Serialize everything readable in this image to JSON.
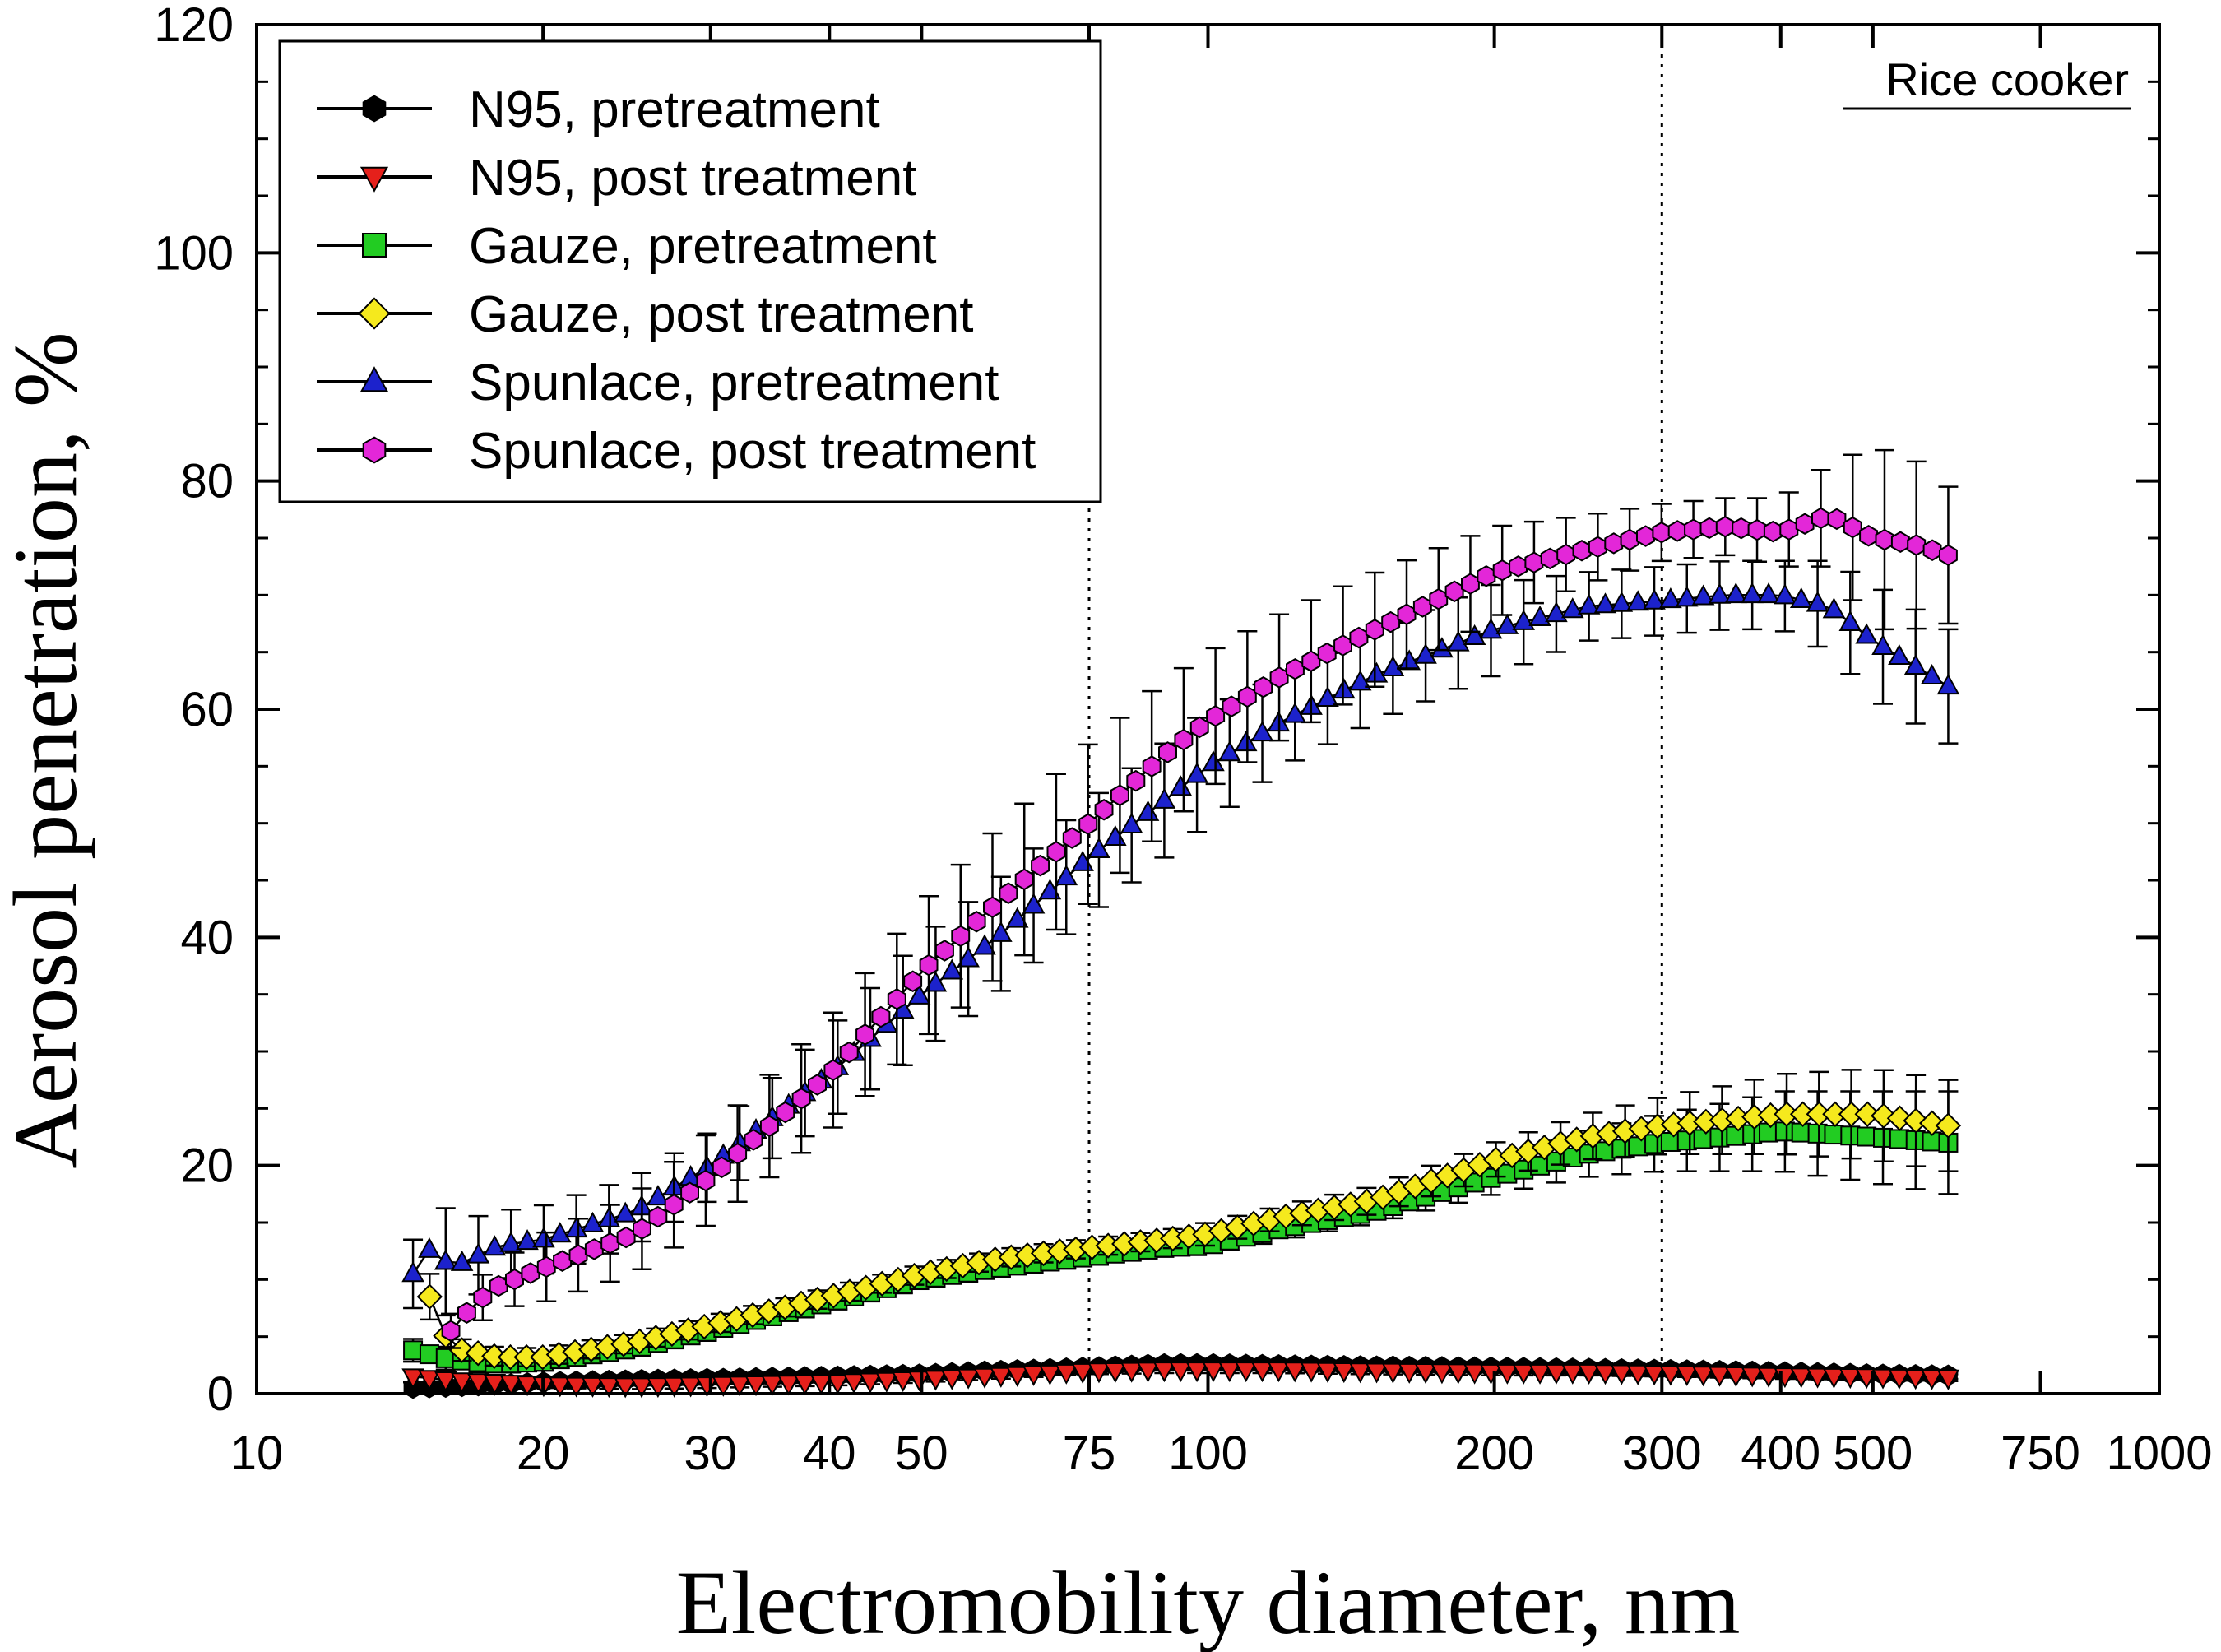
{
  "chart_data": {
    "type": "scatter",
    "xlabel": "Electromobility diameter, nm",
    "ylabel": "Aerosol penetration, %",
    "xscale": "log",
    "xlim": [
      10,
      1000
    ],
    "ylim": [
      0,
      120
    ],
    "xticks": [
      10,
      20,
      30,
      40,
      50,
      75,
      100,
      200,
      300,
      400,
      500,
      750,
      1000
    ],
    "yticks": [
      0,
      20,
      40,
      60,
      80,
      100,
      120
    ],
    "reference_lines_x": [
      75,
      300
    ],
    "annotation": "Rice cooker",
    "legend_position": "top-left",
    "error_bars": true,
    "series": [
      {
        "name": "N95, pretreatment",
        "color": "#000000",
        "marker": "hexagon",
        "x": [
          14.6,
          16,
          18,
          20,
          25,
          30,
          40,
          50,
          60,
          75,
          90,
          100,
          120,
          150,
          200,
          250,
          300,
          400,
          500,
          600
        ],
        "y": [
          0.5,
          0.6,
          0.8,
          1.0,
          1.2,
          1.3,
          1.5,
          1.7,
          2.0,
          2.3,
          2.6,
          2.6,
          2.5,
          2.4,
          2.3,
          2.2,
          2.1,
          1.9,
          1.7,
          1.6
        ],
        "err": [
          0.5,
          0.5,
          0.4,
          0.4,
          0.3,
          0.3,
          0.3,
          0.3,
          0.3,
          0.3,
          0.3,
          0.3,
          0.3,
          0.3,
          0.3,
          0.3,
          0.3,
          0.3,
          0.3,
          0.3
        ]
      },
      {
        "name": "N95, post treatment",
        "color": "#e5201b",
        "marker": "triangle-down",
        "x": [
          14.6,
          16,
          18,
          20,
          25,
          30,
          40,
          50,
          60,
          75,
          90,
          100,
          120,
          150,
          200,
          250,
          300,
          400,
          500,
          600
        ],
        "y": [
          1.5,
          1.2,
          1.0,
          0.8,
          0.7,
          0.8,
          1.0,
          1.3,
          1.6,
          2.0,
          2.1,
          2.1,
          2.1,
          2.0,
          1.9,
          1.9,
          1.8,
          1.6,
          1.5,
          1.4
        ],
        "err": [
          0.5,
          0.5,
          0.4,
          0.3,
          0.3,
          0.3,
          0.3,
          0.3,
          0.3,
          0.3,
          0.3,
          0.3,
          0.3,
          0.3,
          0.3,
          0.3,
          0.3,
          0.3,
          0.3,
          0.3
        ]
      },
      {
        "name": "Gauze, pretreatment",
        "color": "#22cc22",
        "marker": "square",
        "x": [
          14.6,
          16,
          18,
          20,
          25,
          30,
          40,
          50,
          60,
          75,
          90,
          100,
          120,
          150,
          200,
          250,
          300,
          350,
          400,
          500,
          600
        ],
        "y": [
          3.8,
          3.0,
          2.6,
          2.8,
          4.0,
          5.5,
          8.0,
          10.0,
          11.0,
          12.0,
          12.8,
          13.0,
          14.5,
          16.0,
          19.0,
          21.0,
          22.0,
          22.5,
          23.0,
          22.5,
          22.0
        ],
        "err": [
          1.0,
          1.0,
          0.8,
          0.8,
          0.8,
          0.8,
          0.8,
          0.8,
          0.8,
          0.8,
          0.8,
          0.8,
          1.0,
          1.0,
          1.5,
          2.0,
          2.5,
          3.0,
          3.5,
          4.0,
          4.5
        ]
      },
      {
        "name": "Gauze, post treatment",
        "color": "#f5e91d",
        "marker": "diamond",
        "x": [
          15.2,
          16,
          18,
          20,
          25,
          30,
          40,
          50,
          60,
          75,
          90,
          100,
          120,
          150,
          200,
          250,
          300,
          350,
          400,
          500,
          600
        ],
        "y": [
          8.5,
          4.0,
          3.2,
          3.2,
          4.5,
          6.0,
          8.5,
          10.5,
          11.8,
          12.8,
          13.5,
          14.0,
          15.5,
          17.0,
          20.5,
          22.5,
          23.5,
          24.0,
          24.5,
          24.5,
          23.5
        ],
        "err": [
          2.0,
          1.0,
          0.8,
          0.8,
          0.8,
          0.8,
          0.8,
          0.8,
          0.8,
          0.8,
          0.8,
          1.0,
          1.0,
          1.2,
          1.5,
          2.0,
          2.5,
          3.0,
          3.5,
          4.0,
          4.0
        ]
      },
      {
        "name": "Spunlace, pretreatment",
        "color": "#1c22cc",
        "marker": "triangle-up",
        "x": [
          14.6,
          15.3,
          16,
          18,
          20,
          25,
          30,
          40,
          50,
          60,
          75,
          90,
          100,
          120,
          150,
          200,
          250,
          300,
          350,
          400,
          450,
          500,
          600
        ],
        "y": [
          10.5,
          13.0,
          11.0,
          13.0,
          13.5,
          16.0,
          20.0,
          28.0,
          35.0,
          40.0,
          47.0,
          52.0,
          55.0,
          59.0,
          63.0,
          67.0,
          69.0,
          69.5,
          70.0,
          70.0,
          69.0,
          66.0,
          62.0
        ],
        "err": [
          3.0,
          6.5,
          4.0,
          3.0,
          3.0,
          3.0,
          3.0,
          4.0,
          5.0,
          5.0,
          5.0,
          5.0,
          5.0,
          4.0,
          4.0,
          4.0,
          3.0,
          3.0,
          3.0,
          3.0,
          4.0,
          5.0,
          5.0
        ]
      },
      {
        "name": "Spunlace, post treatment",
        "color": "#e327d8",
        "marker": "hexagon",
        "x": [
          16,
          17,
          18,
          20,
          25,
          30,
          40,
          50,
          60,
          75,
          90,
          100,
          120,
          150,
          200,
          250,
          300,
          350,
          400,
          450,
          500,
          550,
          600
        ],
        "y": [
          5.5,
          8.0,
          9.5,
          11.0,
          14.0,
          19.0,
          28.0,
          37.0,
          43.0,
          50.0,
          56.0,
          59.0,
          63.0,
          67.0,
          72.0,
          74.0,
          75.5,
          76.0,
          75.5,
          77.0,
          75.0,
          74.5,
          73.5
        ],
        "err": [
          1.5,
          2.0,
          2.0,
          3.0,
          3.5,
          4.0,
          5.0,
          6.0,
          6.5,
          7.0,
          6.5,
          6.0,
          5.5,
          5.0,
          4.0,
          3.0,
          2.5,
          2.5,
          3.0,
          4.5,
          8.0,
          7.5,
          6.0
        ]
      }
    ]
  }
}
